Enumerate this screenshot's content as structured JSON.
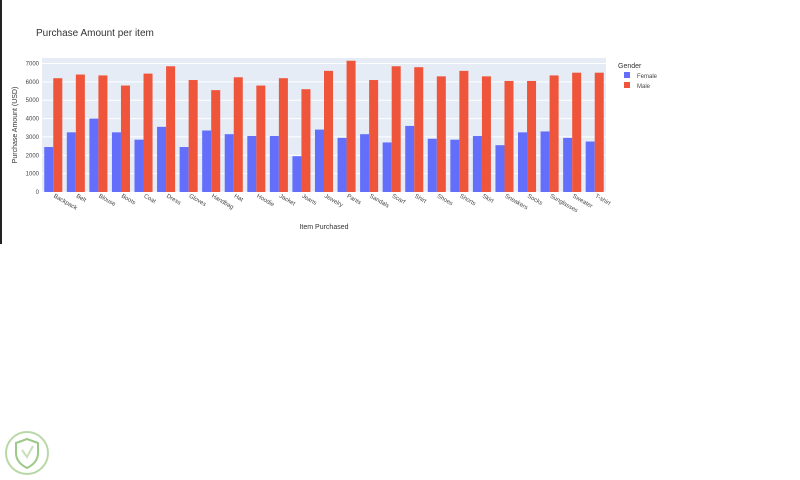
{
  "chart_data": {
    "type": "bar",
    "title": "Purchase Amount per item",
    "xlabel": "Item Purchased",
    "ylabel": "Purchase Amount (USD)",
    "ylim": [
      0,
      7300
    ],
    "yticks": [
      0,
      1000,
      2000,
      3000,
      4000,
      5000,
      6000,
      7000
    ],
    "grid": true,
    "legend": {
      "title": "Gender",
      "placement": "right"
    },
    "categories": [
      "Backpack",
      "Belt",
      "Blouse",
      "Boots",
      "Coat",
      "Dress",
      "Gloves",
      "Handbag",
      "Hat",
      "Hoodie",
      "Jacket",
      "Jeans",
      "Jewelry",
      "Pants",
      "Sandals",
      "Scarf",
      "Shirt",
      "Shoes",
      "Shorts",
      "Skirt",
      "Sneakers",
      "Socks",
      "Sunglasses",
      "Sweater",
      "T-shirt"
    ],
    "series": [
      {
        "name": "Female",
        "color": "#636efa",
        "values": [
          2450,
          3250,
          4000,
          3250,
          2850,
          3550,
          2450,
          3350,
          3150,
          3050,
          3050,
          1950,
          3400,
          2950,
          3150,
          2700,
          3600,
          2900,
          2850,
          3050,
          2550,
          3250,
          3300,
          2950,
          2750
        ]
      },
      {
        "name": "Male",
        "color": "#ef553b",
        "values": [
          6200,
          6400,
          6350,
          5800,
          6450,
          6850,
          6100,
          5550,
          6250,
          5800,
          6200,
          5600,
          6600,
          7150,
          6100,
          6850,
          6800,
          6300,
          6600,
          6300,
          6050,
          6050,
          6350,
          6500,
          6500
        ]
      }
    ]
  }
}
